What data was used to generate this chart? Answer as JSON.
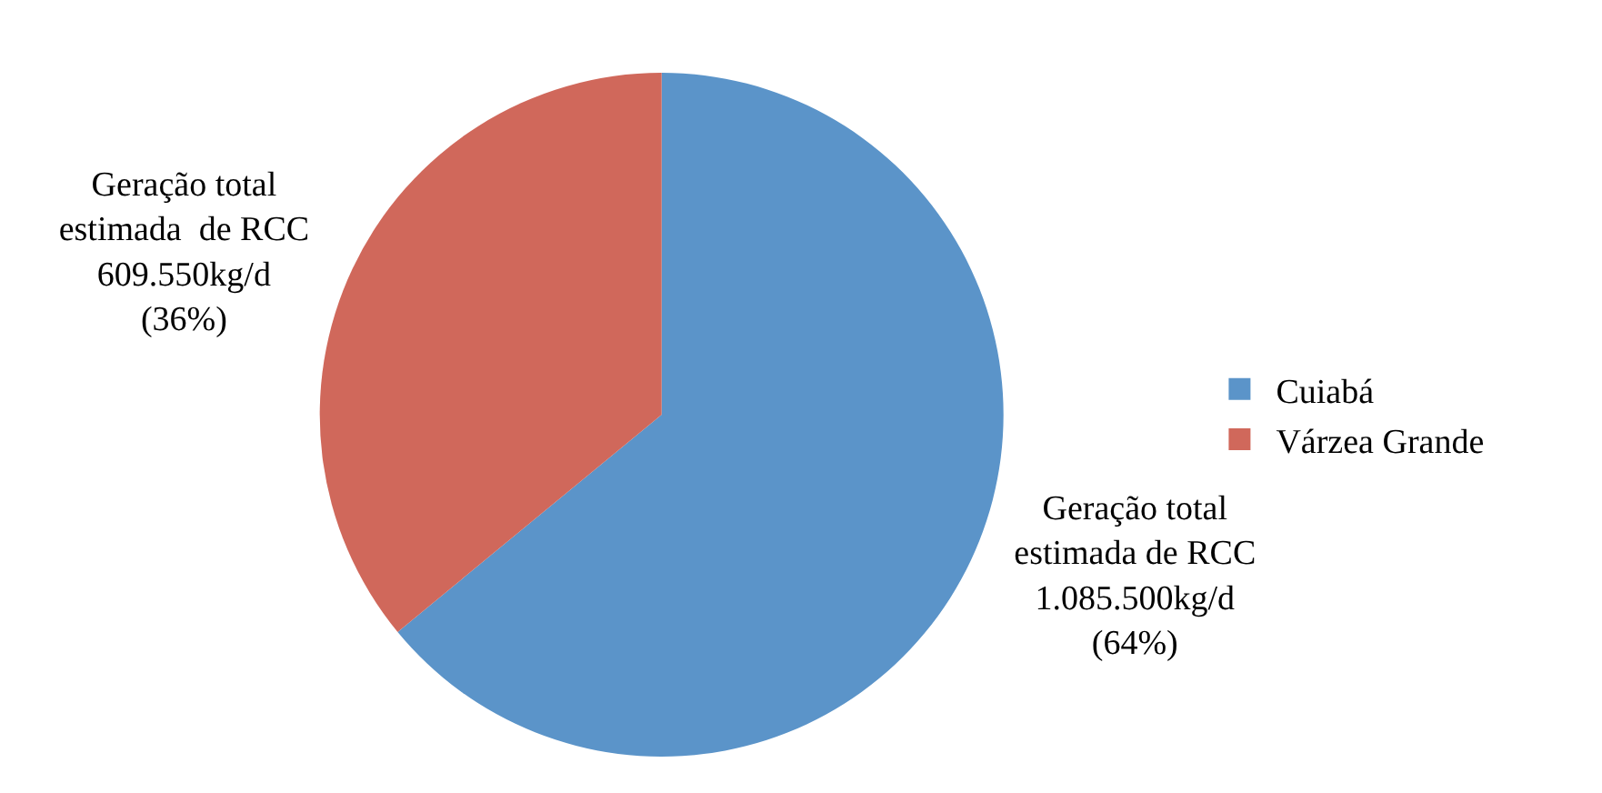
{
  "chart_data": {
    "type": "pie",
    "categories": [
      "Cuiabá",
      "Várzea Grande"
    ],
    "values": [
      1085500,
      609550
    ],
    "colors": [
      "#5b94c9",
      "#d0685b"
    ],
    "value_labels": [
      "Geração total estimada de RCC 1.085.500kg/d (64%)",
      "Geração total estimada  de RCC 609.550kg/d (36%)"
    ],
    "legend": "right"
  }
}
